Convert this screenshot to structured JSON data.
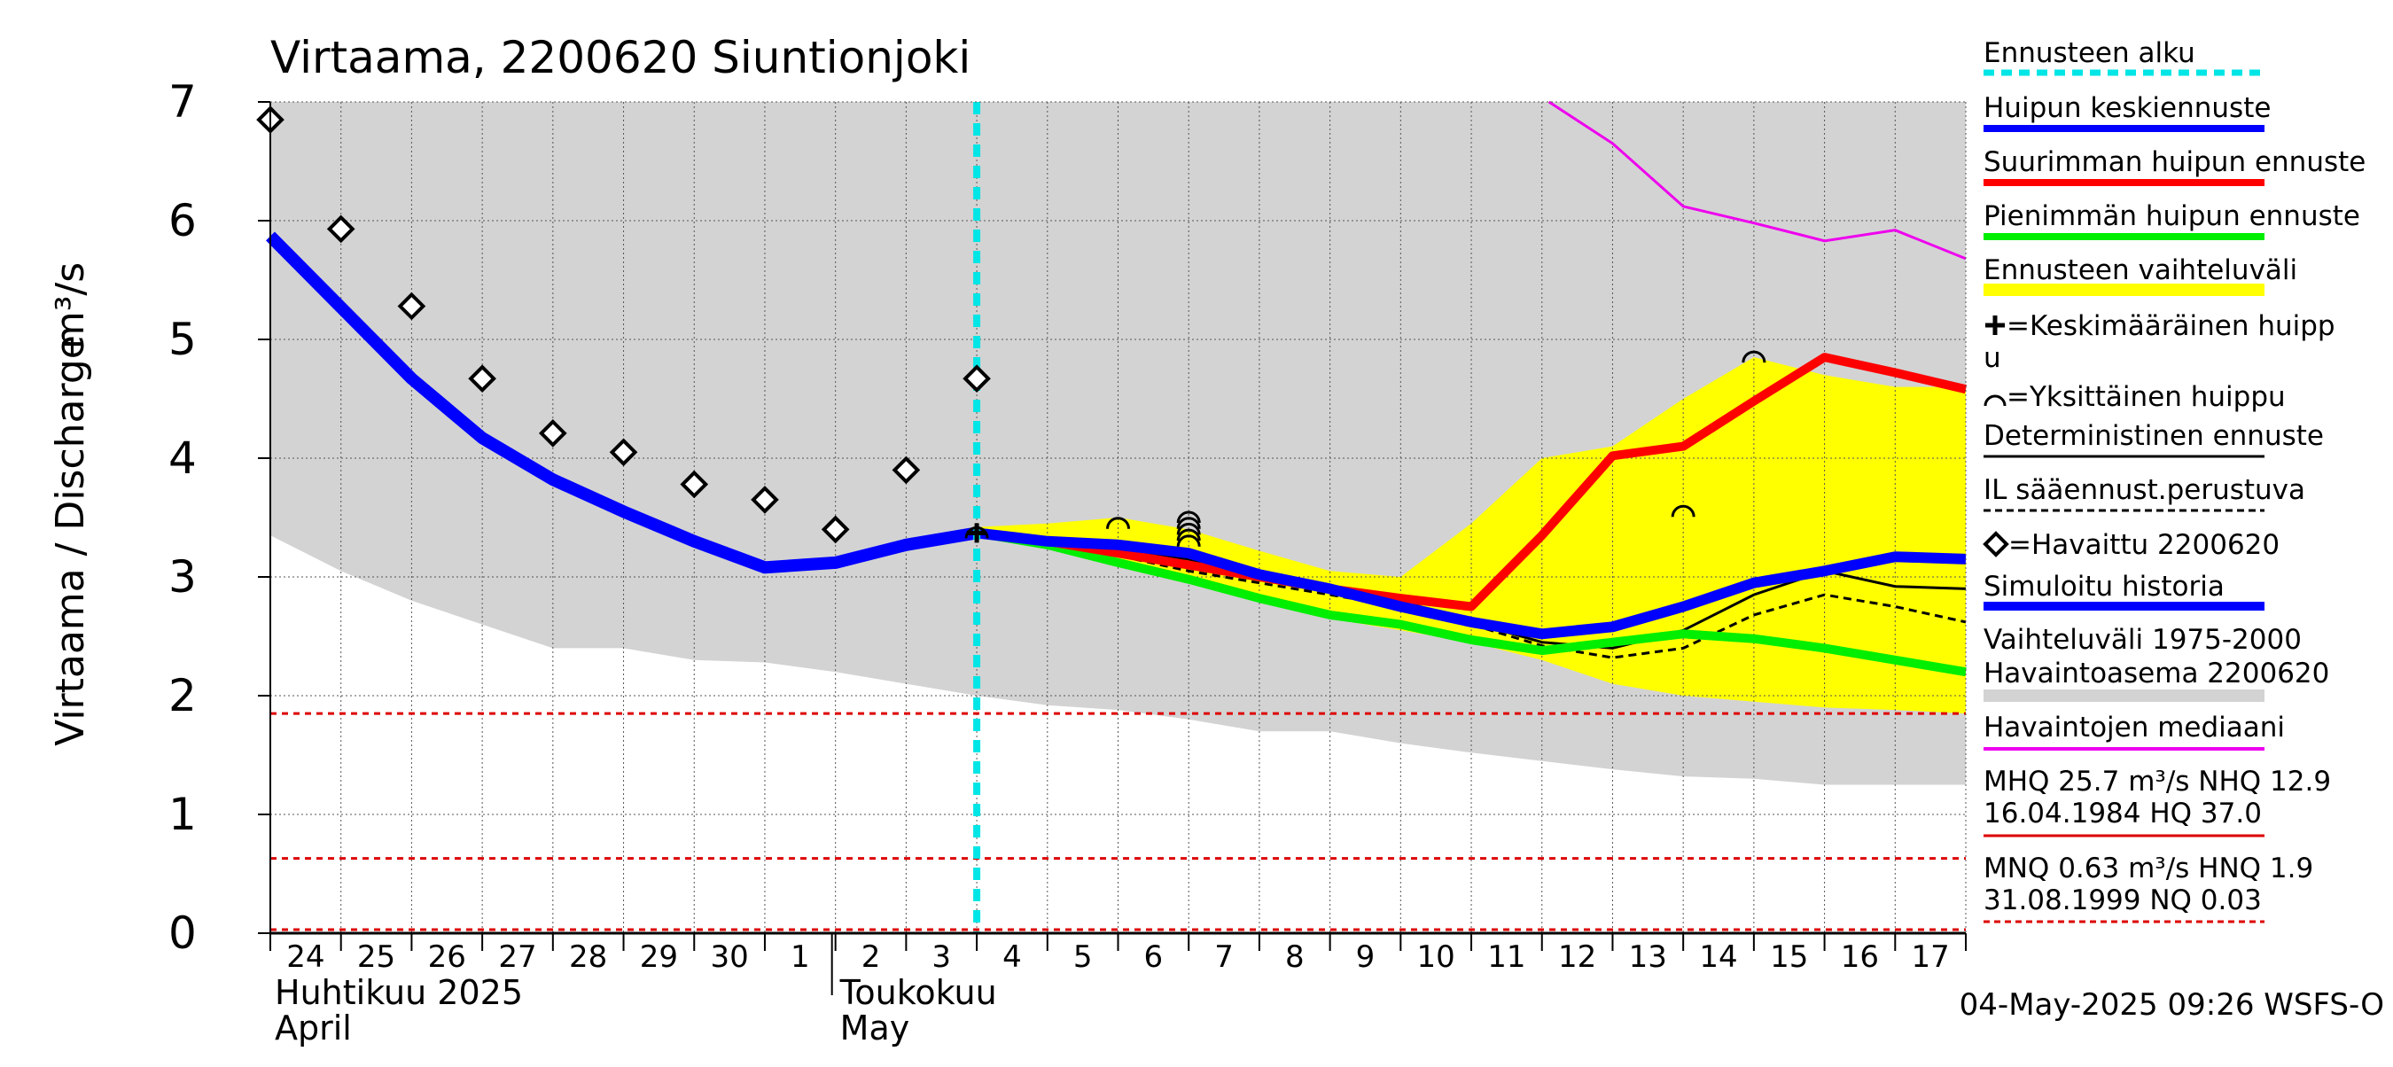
{
  "chart_data": {
    "type": "line",
    "title": "Virtaama, 2200620 Siuntionjoki",
    "ylabel": "Virtaama / Discharge",
    "yunit": "m³/s",
    "ylim": [
      0,
      7
    ],
    "yticks": [
      0,
      1,
      2,
      3,
      4,
      5,
      6,
      7
    ],
    "xlim": [
      0,
      24
    ],
    "day_labels": [
      "24",
      "25",
      "26",
      "27",
      "28",
      "29",
      "30",
      "1",
      "2",
      "3",
      "4",
      "5",
      "6",
      "7",
      "8",
      "9",
      "10",
      "11",
      "12",
      "13",
      "14",
      "15",
      "16",
      "17"
    ],
    "month_labels": [
      {
        "fi": "Huhtikuu  2025",
        "en": "April",
        "x": 0
      },
      {
        "fi": "Toukokuu",
        "en": "May",
        "x": 8
      }
    ],
    "forecast_start_x": 10,
    "timestamp": "04-May-2025 09:26 WSFS-O",
    "legend": {
      "forecast_start": "Ennusteen alku",
      "mean_peak": "Huipun keskiennuste",
      "max_peak": "Suurimman huipun ennuste",
      "min_peak": "Pienimmän huipun ennuste",
      "forecast_range": "Ennusteen vaihteluväli",
      "avg_peak_line1": "=Keskimääräinen huipp",
      "avg_peak_line2": "u",
      "single_peak": "=Yksittäinen huippu",
      "deterministic": "Deterministinen ennuste",
      "il_weather": "IL sääennust.perustuva",
      "observed": "=Havaittu 2200620",
      "simulated": "Simuloitu historia",
      "range_hist_line1": "Vaihteluväli 1975-2000",
      "range_hist_line2": " Havaintoasema 2200620",
      "median": "Havaintojen mediaani",
      "mhq_line1": "MHQ 25.7 m³/s NHQ 12.9",
      "mhq_line2": "16.04.1984 HQ 37.0",
      "mnq_line1": "MNQ 0.63 m³/s HNQ  1.9",
      "mnq_line2": "31.08.1999 NQ 0.03"
    },
    "reference_lines": [
      1.85,
      0.63,
      0.03
    ],
    "colors": {
      "hist_band": "#d3d3d3",
      "forecast_band": "#ffff00",
      "forecast_start": "#00e5e5",
      "mean_peak": "#0000ff",
      "max_peak": "#ff0000",
      "min_peak": "#00ee00",
      "median": "#ee00ee",
      "simulated": "#0000ff",
      "reference": "#dd0000"
    },
    "series": {
      "hist_band": {
        "x": [
          0,
          1,
          2,
          3,
          4,
          5,
          6,
          7,
          8,
          9,
          10,
          11,
          12,
          13,
          14,
          15,
          16,
          17,
          18,
          19,
          20,
          21,
          22,
          23,
          24
        ],
        "upper": [
          7,
          7,
          7,
          7,
          7,
          7,
          7,
          7,
          7,
          7,
          7,
          7,
          7,
          7,
          7,
          7,
          7,
          7,
          7,
          7,
          7,
          7,
          7,
          7,
          7
        ],
        "lower": [
          3.35,
          3.05,
          2.8,
          2.6,
          2.4,
          2.4,
          2.3,
          2.28,
          2.2,
          2.1,
          2.0,
          1.92,
          1.88,
          1.8,
          1.7,
          1.7,
          1.6,
          1.52,
          1.45,
          1.38,
          1.32,
          1.3,
          1.25,
          1.25,
          1.25
        ]
      },
      "forecast_band": {
        "x": [
          10,
          11,
          12,
          13,
          14,
          15,
          16,
          17,
          18,
          19,
          20,
          21,
          22,
          23,
          24
        ],
        "upper": [
          3.42,
          3.45,
          3.5,
          3.4,
          3.22,
          3.05,
          3.0,
          3.45,
          4.0,
          4.1,
          4.5,
          4.85,
          4.7,
          4.6,
          4.6
        ],
        "lower": [
          3.35,
          3.3,
          3.15,
          3.0,
          2.8,
          2.65,
          2.55,
          2.45,
          2.3,
          2.1,
          2.0,
          1.95,
          1.9,
          1.88,
          1.85
        ]
      },
      "observed": {
        "x": [
          0,
          1,
          2,
          3,
          4,
          5,
          6,
          7,
          8,
          9,
          10
        ],
        "y": [
          6.85,
          5.93,
          5.28,
          4.67,
          4.21,
          4.05,
          3.78,
          3.65,
          3.4,
          3.9,
          4.67
        ]
      },
      "simulated": {
        "x": [
          0,
          1,
          2,
          3,
          4,
          5,
          6,
          7,
          8,
          9,
          10
        ],
        "y": [
          5.87,
          5.27,
          4.67,
          4.17,
          3.82,
          3.55,
          3.3,
          3.08,
          3.12,
          3.27,
          3.37
        ]
      },
      "mean_peak": {
        "x": [
          10,
          11,
          12,
          13,
          14,
          15,
          16,
          17,
          18,
          19,
          20,
          21,
          22,
          23,
          24
        ],
        "y": [
          3.37,
          3.3,
          3.27,
          3.2,
          3.02,
          2.9,
          2.75,
          2.62,
          2.52,
          2.58,
          2.75,
          2.95,
          3.05,
          3.17,
          3.15
        ]
      },
      "max_peak": {
        "x": [
          10,
          11,
          12,
          13,
          14,
          15,
          16,
          17,
          18,
          19,
          20,
          21,
          22,
          23,
          24
        ],
        "y": [
          3.37,
          3.3,
          3.2,
          3.1,
          3.0,
          2.9,
          2.82,
          2.75,
          3.35,
          4.02,
          4.1,
          4.48,
          4.85,
          4.72,
          4.58
        ]
      },
      "min_peak": {
        "x": [
          10,
          11,
          12,
          13,
          14,
          15,
          16,
          17,
          18,
          19,
          20,
          21,
          22,
          23,
          24
        ],
        "y": [
          3.37,
          3.27,
          3.12,
          2.98,
          2.82,
          2.68,
          2.6,
          2.47,
          2.38,
          2.45,
          2.52,
          2.48,
          2.4,
          2.3,
          2.2
        ]
      },
      "deterministic": {
        "x": [
          10,
          11,
          12,
          13,
          14,
          15,
          16,
          17,
          18,
          19,
          20,
          21,
          22,
          23,
          24
        ],
        "y": [
          3.37,
          3.32,
          3.22,
          3.15,
          3.0,
          2.9,
          2.8,
          2.62,
          2.45,
          2.4,
          2.55,
          2.85,
          3.05,
          2.92,
          2.9
        ]
      },
      "il_weather": {
        "x": [
          10,
          11,
          12,
          13,
          14,
          15,
          16,
          17,
          18,
          19,
          20,
          21,
          22,
          23,
          24
        ],
        "y": [
          3.37,
          3.3,
          3.18,
          3.05,
          2.95,
          2.85,
          2.75,
          2.6,
          2.42,
          2.32,
          2.4,
          2.68,
          2.85,
          2.75,
          2.62
        ]
      },
      "median": {
        "x": [
          18.1,
          19,
          20,
          21,
          22,
          23,
          24
        ],
        "y": [
          7.0,
          6.65,
          6.12,
          5.98,
          5.83,
          5.92,
          5.68
        ]
      },
      "single_peaks": {
        "x": [
          10,
          12,
          13,
          13,
          13,
          13,
          13,
          21,
          20
        ],
        "y": [
          3.37,
          3.45,
          3.5,
          3.45,
          3.4,
          3.35,
          3.3,
          4.85,
          3.55
        ]
      },
      "avg_peak": {
        "x": [
          10
        ],
        "y": [
          3.37
        ]
      }
    }
  }
}
